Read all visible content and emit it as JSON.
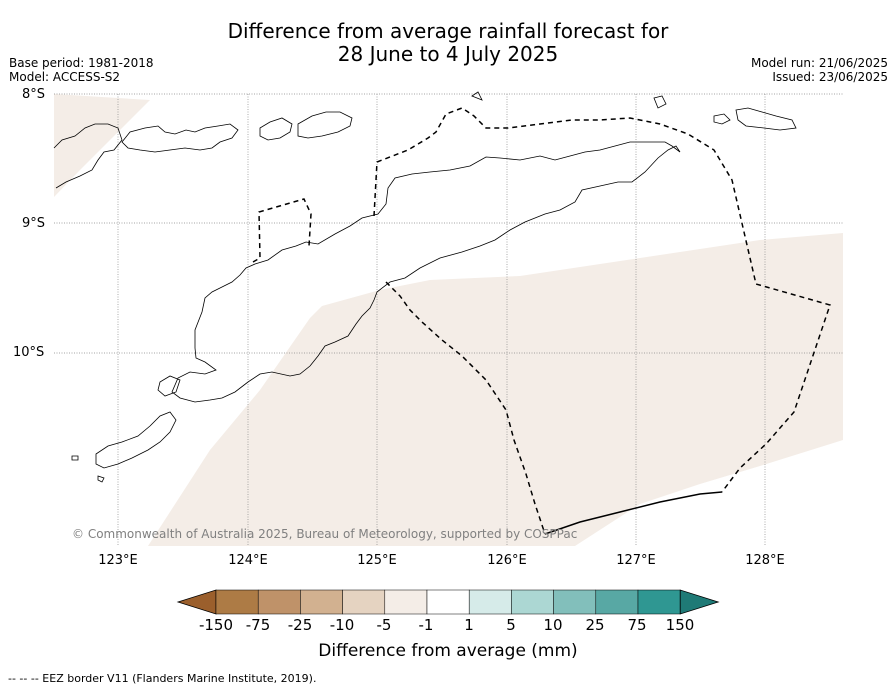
{
  "title": {
    "line1": "Difference from average rainfall forecast for",
    "line2": "28 June to 4 July 2025"
  },
  "meta": {
    "base_period": "Base period: 1981-2018",
    "model": "Model: ACCESS-S2",
    "model_run": "Model run: 21/06/2025",
    "issued": "Issued: 23/06/2025"
  },
  "axes": {
    "lat_labels": [
      "8°S",
      "9°S",
      "10°S"
    ],
    "lon_labels": [
      "123°E",
      "124°E",
      "125°E",
      "126°E",
      "127°E",
      "128°E"
    ]
  },
  "map_extent": {
    "lon_range": [
      122.5,
      128.6
    ],
    "lat_range": [
      -11.5,
      -8.0
    ]
  },
  "map_colors": {
    "land_outline": "#000000",
    "light_drier_fill": "#f4ede7",
    "eez_line": "#000000"
  },
  "copyright": "© Commonwealth of Australia 2025, Bureau of Meteorology, supported by COSPPac",
  "colorbar": {
    "title": "Difference from average (mm)",
    "tick_labels": [
      "-150",
      "-75",
      "-25",
      "-10",
      "-5",
      "-1",
      "1",
      "5",
      "10",
      "25",
      "75",
      "150"
    ],
    "bins": [
      {
        "range": "< -150",
        "color": "#9b5f2c"
      },
      {
        "range": "-150 to -75",
        "color": "#ad7b45"
      },
      {
        "range": "-75 to -25",
        "color": "#bf9269"
      },
      {
        "range": "-25 to -10",
        "color": "#d2b190"
      },
      {
        "range": "-10 to -5",
        "color": "#e5d3c1"
      },
      {
        "range": "-5 to -1",
        "color": "#f4ede7"
      },
      {
        "range": "-1 to 1",
        "color": "#ffffff"
      },
      {
        "range": "1 to 5",
        "color": "#d6ebe9"
      },
      {
        "range": "5 to 10",
        "color": "#acd7d3"
      },
      {
        "range": "10 to 25",
        "color": "#82bfbb"
      },
      {
        "range": "25 to 75",
        "color": "#58a8a4"
      },
      {
        "range": "75 to 150",
        "color": "#2f9792"
      },
      {
        "range": "> 150",
        "color": "#1f7a76"
      }
    ]
  },
  "footer": "--  --  -- EEZ border V11 (Flanders Marine Institute, 2019)."
}
